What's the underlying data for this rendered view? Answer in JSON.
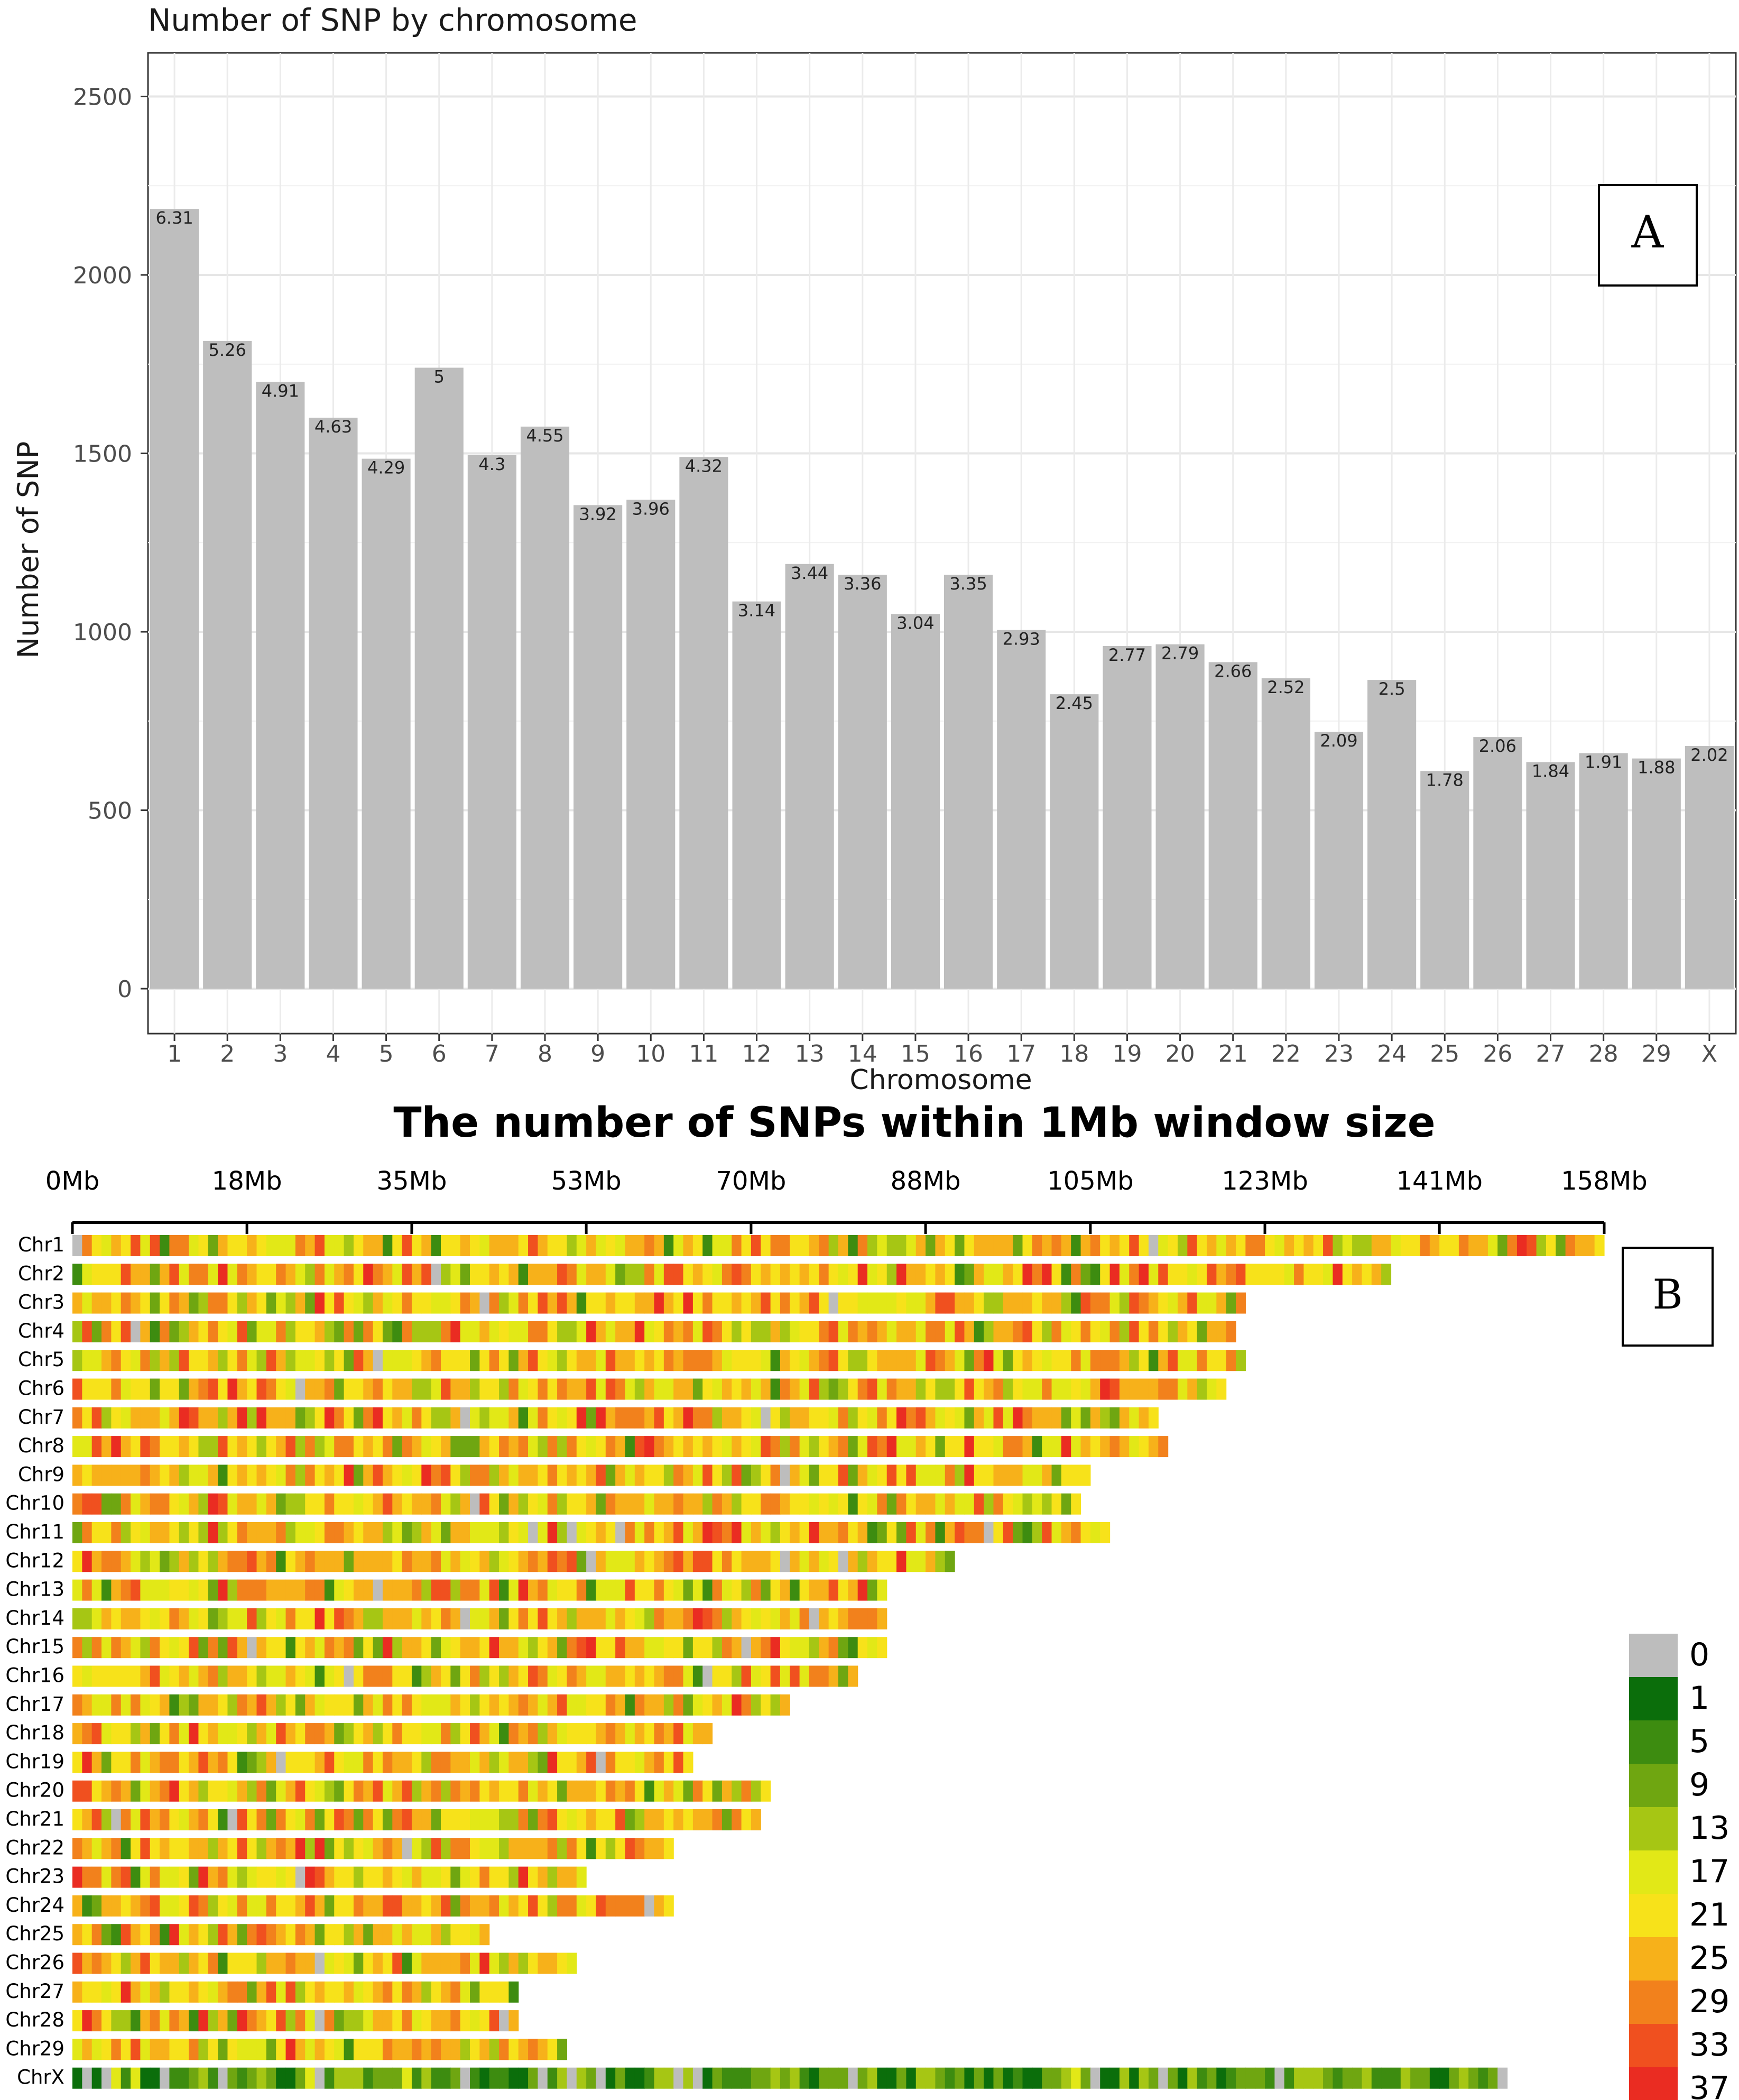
{
  "chart_data": [
    {
      "type": "bar",
      "title": "Number of SNP by chromosome",
      "xlabel": "Chromosome",
      "ylabel": "Number of SNP",
      "panel_label": "A",
      "ylim": [
        0,
        2600
      ],
      "yticks": [
        0,
        500,
        1000,
        1500,
        2000,
        2500
      ],
      "grid": true,
      "bar_color": "#bebebe",
      "categories": [
        "1",
        "2",
        "3",
        "4",
        "5",
        "6",
        "7",
        "8",
        "9",
        "10",
        "11",
        "12",
        "13",
        "14",
        "15",
        "16",
        "17",
        "18",
        "19",
        "20",
        "21",
        "22",
        "23",
        "24",
        "25",
        "26",
        "27",
        "28",
        "29",
        "X"
      ],
      "values": [
        2185,
        1815,
        1700,
        1600,
        1485,
        1740,
        1495,
        1575,
        1355,
        1370,
        1490,
        1085,
        1190,
        1160,
        1050,
        1160,
        1005,
        825,
        960,
        965,
        915,
        870,
        720,
        865,
        610,
        705,
        635,
        660,
        645,
        680
      ],
      "data_labels": [
        "6.31",
        "5.26",
        "4.91",
        "4.63",
        "4.29",
        "5",
        "4.3",
        "4.55",
        "3.92",
        "3.96",
        "4.32",
        "3.14",
        "3.44",
        "3.36",
        "3.04",
        "3.35",
        "2.93",
        "2.45",
        "2.77",
        "2.79",
        "2.66",
        "2.52",
        "2.09",
        "2.5",
        "1.78",
        "2.06",
        "1.84",
        "1.91",
        "1.88",
        "2.02"
      ]
    },
    {
      "type": "heatmap",
      "title": "The number of SNPs within 1Mb window size",
      "panel_label": "B",
      "x_tick_labels": [
        "0Mb",
        "18Mb",
        "35Mb",
        "53Mb",
        "70Mb",
        "88Mb",
        "105Mb",
        "123Mb",
        "141Mb",
        "158Mb"
      ],
      "x_max_mb": 158,
      "chromosomes": [
        "Chr1",
        "Chr2",
        "Chr3",
        "Chr4",
        "Chr5",
        "Chr6",
        "Chr7",
        "Chr8",
        "Chr9",
        "Chr10",
        "Chr11",
        "Chr12",
        "Chr13",
        "Chr14",
        "Chr15",
        "Chr16",
        "Chr17",
        "Chr18",
        "Chr19",
        "Chr20",
        "Chr21",
        "Chr22",
        "Chr23",
        "Chr24",
        "Chr25",
        "Chr26",
        "Chr27",
        "Chr28",
        "Chr29",
        "ChrX"
      ],
      "lengths_mb": [
        158,
        136,
        121,
        120,
        121,
        119,
        112,
        113,
        105,
        104,
        107,
        91,
        84,
        84,
        84,
        81,
        74,
        66,
        64,
        72,
        71,
        62,
        53,
        62,
        43,
        52,
        46,
        46,
        51,
        148
      ],
      "legend_values": [
        "0",
        "1",
        "5",
        "9",
        "13",
        "17",
        "21",
        "25",
        "29",
        "33",
        "37"
      ],
      "legend_colors": [
        "#bdbdbd",
        "#0b6e0b",
        "#3d8c10",
        "#6fa611",
        "#a6c614",
        "#e2e817",
        "#f7e21a",
        "#f7b11a",
        "#f2811c",
        "#f0501f",
        "#ea2c22"
      ]
    }
  ]
}
